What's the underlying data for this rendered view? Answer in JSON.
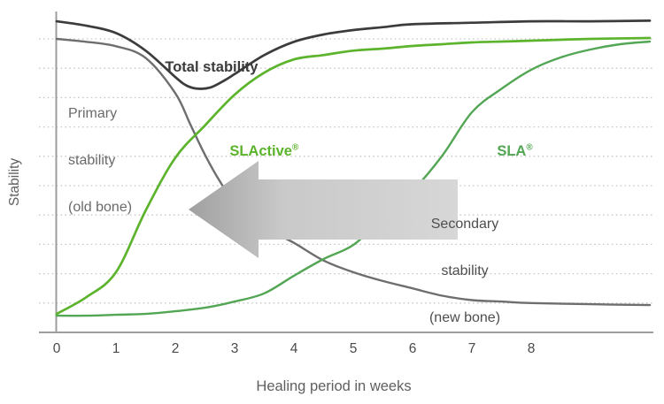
{
  "labels": {
    "total": {
      "text": "Total stability"
    },
    "primary": {
      "line1": "Primary",
      "line2": "stability",
      "line3": "(old bone)"
    },
    "slactive": {
      "text": "SLActive",
      "reg": "®"
    },
    "sla": {
      "text": "SLA",
      "reg": "®"
    },
    "secondary": {
      "line1": "Secondary",
      "line2": "stability",
      "line3": "(new bone)"
    },
    "xlabel": "Healing period in weeks",
    "ylabel": "Stability"
  },
  "colors": {
    "axis": "#9d9d9d",
    "grid": "#c7c7c7",
    "arrow_dark": "#a0a0a0",
    "arrow_mid": "#c9c9c9",
    "arrow_light": "#d7d7d7"
  },
  "chart_data": {
    "type": "line",
    "title": "",
    "xlabel": "Healing period in weeks",
    "ylabel": "Stability",
    "x_ticks": [
      "0",
      "1",
      "2",
      "3",
      "4",
      "5",
      "6",
      "7",
      "8"
    ],
    "x_range_weeks": [
      0,
      10
    ],
    "y_axis_note": "relative stability in % (no numeric labels shown); dotted gridlines every 10% from 10% to 100%",
    "gridline_pcts": [
      10,
      20,
      30,
      40,
      50,
      60,
      70,
      80,
      90,
      100
    ],
    "legend_position": "labels placed directly on curves",
    "grid": "horizontal dotted lines only",
    "series": [
      {
        "name": "Primary stability (old bone)",
        "color": "#6e6e6e",
        "width": 2.4,
        "behind_arrow": true,
        "points": [
          [
            0,
            100
          ],
          [
            0.5,
            99
          ],
          [
            1,
            97.5
          ],
          [
            1.5,
            93.5
          ],
          [
            2,
            81.5
          ],
          [
            2.25,
            71
          ],
          [
            2.5,
            60.5
          ],
          [
            2.75,
            51.5
          ],
          [
            3,
            44.5
          ],
          [
            3.5,
            36
          ],
          [
            4,
            30.5
          ],
          [
            4.5,
            24.5
          ],
          [
            5,
            20.5
          ],
          [
            5.5,
            17.5
          ],
          [
            6,
            15
          ],
          [
            6.5,
            12.5
          ],
          [
            7,
            11
          ],
          [
            7.5,
            10.5
          ],
          [
            8,
            10
          ],
          [
            9,
            9.6
          ],
          [
            10,
            9.3
          ]
        ]
      },
      {
        "name": "SLA",
        "color": "#52a654",
        "width": 2.4,
        "behind_arrow": true,
        "points": [
          [
            0,
            5.7
          ],
          [
            0.5,
            5.7
          ],
          [
            1,
            6
          ],
          [
            1.5,
            6.3
          ],
          [
            2,
            7.2
          ],
          [
            2.5,
            8.4
          ],
          [
            3,
            10.5
          ],
          [
            3.5,
            13.3
          ],
          [
            4,
            19.3
          ],
          [
            4.5,
            25
          ],
          [
            5,
            29.8
          ],
          [
            5.5,
            38.9
          ],
          [
            6,
            48.2
          ],
          [
            6.5,
            60.2
          ],
          [
            7,
            75
          ],
          [
            7.5,
            83
          ],
          [
            8,
            89.5
          ],
          [
            8.5,
            93.7
          ],
          [
            9,
            96.4
          ],
          [
            9.5,
            98.2
          ],
          [
            10,
            99.1
          ]
        ]
      },
      {
        "name": "SLActive",
        "color": "#5cb32c",
        "width": 2.7,
        "behind_arrow": false,
        "points": [
          [
            0,
            6.3
          ],
          [
            0.5,
            12
          ],
          [
            1,
            20.5
          ],
          [
            1.5,
            41.5
          ],
          [
            2,
            59.5
          ],
          [
            2.5,
            70.5
          ],
          [
            3,
            81
          ],
          [
            3.5,
            88.5
          ],
          [
            4,
            93
          ],
          [
            4.5,
            94.5
          ],
          [
            5,
            96
          ],
          [
            5.5,
            96.7
          ],
          [
            6,
            97.6
          ],
          [
            6.5,
            98.2
          ],
          [
            7,
            98.8
          ],
          [
            7.5,
            99.1
          ],
          [
            8,
            99.4
          ],
          [
            9,
            100
          ],
          [
            10,
            100.3
          ]
        ]
      },
      {
        "name": "Total stability",
        "color": "#3c3c3c",
        "width": 2.7,
        "behind_arrow": false,
        "points": [
          [
            0,
            106
          ],
          [
            0.5,
            104.5
          ],
          [
            1,
            102
          ],
          [
            1.5,
            96
          ],
          [
            2,
            87
          ],
          [
            2.2,
            84
          ],
          [
            2.4,
            83
          ],
          [
            2.6,
            83.5
          ],
          [
            2.8,
            85.5
          ],
          [
            3,
            88
          ],
          [
            3.5,
            94.5
          ],
          [
            4,
            99
          ],
          [
            4.5,
            101.5
          ],
          [
            5,
            103
          ],
          [
            5.5,
            104
          ],
          [
            6,
            105
          ],
          [
            7,
            105.5
          ],
          [
            8,
            106
          ],
          [
            9,
            106
          ],
          [
            10,
            106.2
          ]
        ]
      }
    ],
    "annotations": [
      {
        "type": "arrow",
        "direction": "left",
        "meaning": "secondary stability (new bone) develops earlier with SLActive than with SLA",
        "label": "Secondary stability (new bone)"
      }
    ]
  }
}
